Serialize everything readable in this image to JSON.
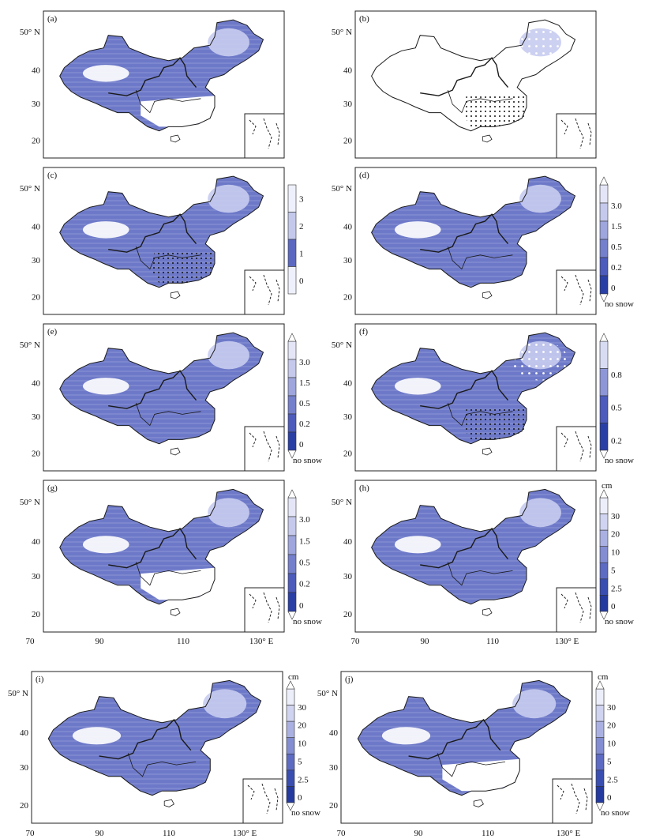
{
  "figure": {
    "panels": [
      {
        "label": "(a)",
        "lat_labels": [
          "50° N",
          "40",
          "30",
          "20"
        ],
        "type": "map"
      },
      {
        "label": "(b)",
        "lat_labels": [
          "50° N",
          "40",
          "30",
          "20"
        ],
        "type": "map"
      },
      {
        "label": "(c)",
        "lat_labels": [
          "50° N",
          "40",
          "30",
          "20"
        ],
        "type": "map",
        "colorbar": {
          "ticks": [
            "3",
            "2",
            "1",
            "0"
          ],
          "unit": "",
          "colors": [
            "#eef0fb",
            "#c4c9ec",
            "#5b68c2",
            "#eef0fb"
          ]
        }
      },
      {
        "label": "(d)",
        "lat_labels": [
          "50° N",
          "40",
          "30",
          "20"
        ],
        "type": "map",
        "colorbar": {
          "ticks": [
            "3.0",
            "1.5",
            "0.5",
            "0.2",
            "0"
          ],
          "unit": "",
          "bottom_label": "no snow",
          "colors": [
            "#e4e6f7",
            "#c5c9ec",
            "#9ea6dd",
            "#7580cc",
            "#4c5bbc",
            "#2a3fa6"
          ]
        }
      },
      {
        "label": "(e)",
        "lat_labels": [
          "50° N",
          "40",
          "30",
          "20"
        ],
        "type": "map",
        "colorbar": {
          "ticks": [
            "3.0",
            "1.5",
            "0.5",
            "0.2",
            "0"
          ],
          "unit": "",
          "bottom_label": "no snow",
          "colors": [
            "#e4e6f7",
            "#c5c9ec",
            "#9ea6dd",
            "#7580cc",
            "#4c5bbc",
            "#2a3fa6"
          ]
        }
      },
      {
        "label": "(f)",
        "lat_labels": [
          "50° N",
          "40",
          "30",
          "20"
        ],
        "type": "map",
        "colorbar": {
          "ticks": [
            "0.8",
            "0.5",
            "0.2"
          ],
          "unit": "",
          "bottom_label": "no snow",
          "colors": [
            "#d8dcf3",
            "#8d96d6",
            "#4c5bbc",
            "#2a3fa6"
          ]
        }
      },
      {
        "label": "(g)",
        "lat_labels": [
          "50° N",
          "40",
          "30",
          "20"
        ],
        "type": "map",
        "colorbar": {
          "ticks": [
            "3.0",
            "1.5",
            "0.5",
            "0.2",
            "0"
          ],
          "unit": "",
          "bottom_label": "no snow",
          "colors": [
            "#e4e6f7",
            "#c5c9ec",
            "#9ea6dd",
            "#7580cc",
            "#4c5bbc",
            "#2a3fa6"
          ]
        }
      },
      {
        "label": "(h)",
        "lat_labels": [
          "50° N",
          "40",
          "30",
          "20"
        ],
        "type": "map",
        "colorbar": {
          "ticks": [
            "30",
            "20",
            "10",
            "5",
            "2.5",
            "0"
          ],
          "unit": "cm",
          "bottom_label": "no snow",
          "colors": [
            "#eceefa",
            "#d0d4f0",
            "#aab1e2",
            "#838dd2",
            "#5d6bc3",
            "#3a4eb1",
            "#243a9e"
          ]
        }
      },
      {
        "label": "(i)",
        "lat_labels": [
          "50° N",
          "40",
          "30",
          "20"
        ],
        "type": "map",
        "colorbar": {
          "ticks": [
            "30",
            "20",
            "10",
            "5",
            "2.5",
            "0"
          ],
          "unit": "cm",
          "bottom_label": "no snow",
          "colors": [
            "#eceefa",
            "#d0d4f0",
            "#aab1e2",
            "#838dd2",
            "#5d6bc3",
            "#3a4eb1",
            "#243a9e"
          ]
        }
      },
      {
        "label": "(j)",
        "lat_labels": [
          "50° N",
          "40",
          "30",
          "20"
        ],
        "type": "map",
        "colorbar": {
          "ticks": [
            "30",
            "20",
            "10",
            "5",
            "2.5",
            "0"
          ],
          "unit": "cm",
          "bottom_label": "no snow",
          "colors": [
            "#eceefa",
            "#d0d4f0",
            "#aab1e2",
            "#838dd2",
            "#5d6bc3",
            "#3a4eb1",
            "#243a9e"
          ]
        }
      }
    ],
    "lon_labels": [
      "70",
      "90",
      "110",
      "130° E"
    ],
    "colors": {
      "snow_fill": "#6d79c8",
      "snow_light": "#c8ccef",
      "snow_dark": "#3d4fb3",
      "outline": "#1a1a1a",
      "station_marker": "#111111"
    }
  }
}
